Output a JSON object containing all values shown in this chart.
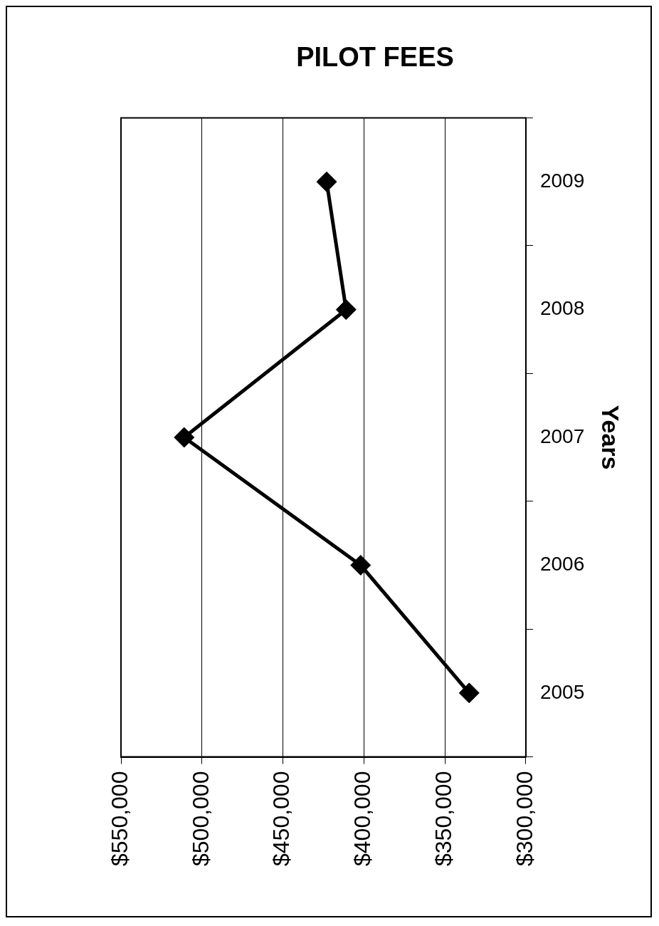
{
  "chart_data": {
    "type": "line",
    "orientation": "horizontal",
    "title": "PILOT FEES",
    "ylabel": "Years",
    "categories": [
      "2009",
      "2008",
      "2007",
      "2006",
      "2005"
    ],
    "series": [
      {
        "color": "#000000",
        "values": [
          423000,
          411000,
          511000,
          402000,
          335000
        ]
      }
    ],
    "xlim": [
      550000,
      300000
    ],
    "xticks": [
      {
        "value": 550000,
        "label": "$550,000"
      },
      {
        "value": 500000,
        "label": "$500,000"
      },
      {
        "value": 450000,
        "label": "$450,000"
      },
      {
        "value": 400000,
        "label": "$400,000"
      },
      {
        "value": 350000,
        "label": "$350,000"
      },
      {
        "value": 300000,
        "label": "$300,000"
      }
    ],
    "grid": "x",
    "legend": false,
    "marker": "diamond",
    "line_style": "solid"
  }
}
